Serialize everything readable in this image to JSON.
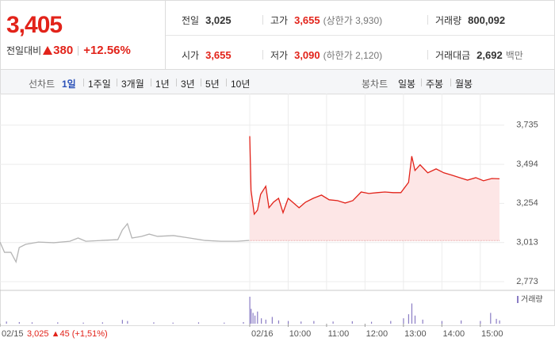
{
  "header": {
    "price": "3,405",
    "change_label": "전일대비",
    "change": "380",
    "change_pct": "+12.56%",
    "stats": [
      [
        {
          "label": "전일",
          "value": "3,025"
        },
        {
          "label": "고가",
          "value": "3,655",
          "note": "(상한가 3,930)"
        },
        {
          "label": "거래량",
          "value": "800,092"
        }
      ],
      [
        {
          "label": "시가",
          "value": "3,655"
        },
        {
          "label": "저가",
          "value": "3,090",
          "note": "(하한가 2,120)"
        },
        {
          "label": "거래대금",
          "value": "2,692",
          "note": "백만"
        }
      ]
    ]
  },
  "tabs": {
    "line_label": "선차트",
    "line_tabs": [
      "1일",
      "1주일",
      "3개월",
      "1년",
      "3년",
      "5년",
      "10년"
    ],
    "candle_label": "봉차트",
    "candle_tabs": [
      "일봉",
      "주봉",
      "월봉"
    ]
  },
  "chart_data": {
    "type": "line",
    "xlim": [
      -390,
      390
    ],
    "xticks": [
      {
        "value": -390,
        "label": "02/15"
      },
      {
        "value": 0,
        "label": "02/16"
      },
      {
        "value": 60,
        "label": "10:00"
      },
      {
        "value": 120,
        "label": "11:00"
      },
      {
        "value": 180,
        "label": "12:00"
      },
      {
        "value": 240,
        "label": "13:00"
      },
      {
        "value": 300,
        "label": "14:00"
      },
      {
        "value": 360,
        "label": "15:00"
      }
    ],
    "ylim": [
      2724,
      3880
    ],
    "yticks": [
      {
        "value": 3735,
        "label": "3,735"
      },
      {
        "value": 3494,
        "label": "3,494"
      },
      {
        "value": 3254,
        "label": "3,254"
      },
      {
        "value": 3013,
        "label": "3,013"
      },
      {
        "value": 2773,
        "label": "2,773"
      }
    ],
    "grid": true,
    "baseline": 3025,
    "prev_summary": "3,025 ▲45 (+1,51%)",
    "series": [
      {
        "color": "#b5b5b5",
        "x": [
          -390,
          -383,
          -373,
          -365,
          -360,
          -350,
          -330,
          -306,
          -281,
          -268,
          -256,
          -231,
          -206,
          -199,
          -191,
          -184,
          -169,
          -157,
          -144,
          -119,
          -94,
          -70,
          -45,
          -20,
          -1
        ],
        "values": [
          3016,
          2953,
          2953,
          2894,
          2982,
          3002,
          3016,
          3012,
          3021,
          3041,
          3021,
          3026,
          3031,
          3090,
          3129,
          3041,
          3051,
          3065,
          3051,
          3056,
          3041,
          3026,
          3021,
          3021,
          3026
        ]
      },
      {
        "color": "#e2231a",
        "fill": "#fde6e6",
        "x": [
          0,
          2,
          7,
          12,
          17,
          25,
          30,
          37,
          45,
          52,
          60,
          67,
          77,
          87,
          99,
          112,
          124,
          137,
          149,
          161,
          174,
          186,
          199,
          211,
          224,
          236,
          248,
          253,
          258,
          266,
          278,
          291,
          303,
          316,
          328,
          340,
          353,
          365,
          378,
          390
        ],
        "values": [
          3667,
          3334,
          3188,
          3212,
          3310,
          3359,
          3227,
          3261,
          3285,
          3197,
          3285,
          3261,
          3227,
          3261,
          3285,
          3305,
          3276,
          3271,
          3256,
          3271,
          3324,
          3315,
          3320,
          3324,
          3320,
          3320,
          3383,
          3544,
          3456,
          3491,
          3442,
          3466,
          3442,
          3427,
          3412,
          3397,
          3412,
          3393,
          3407,
          3405
        ]
      }
    ],
    "volume": {
      "name": "거래량",
      "color": "#8a7cc4",
      "vlim": [
        0,
        100
      ],
      "x": [
        -380,
        -360,
        -340,
        -300,
        -260,
        -230,
        -199,
        -191,
        -150,
        -120,
        -80,
        -40,
        -10,
        0,
        2,
        5,
        8,
        12,
        18,
        25,
        35,
        45,
        60,
        80,
        100,
        130,
        160,
        190,
        220,
        240,
        248,
        253,
        258,
        270,
        300,
        330,
        360,
        376,
        385,
        390
      ],
      "values": [
        8,
        6,
        5,
        5,
        4,
        5,
        14,
        10,
        5,
        4,
        5,
        4,
        6,
        100,
        55,
        40,
        30,
        45,
        20,
        15,
        25,
        12,
        10,
        8,
        10,
        8,
        9,
        7,
        10,
        20,
        35,
        75,
        30,
        15,
        10,
        12,
        10,
        40,
        18,
        12
      ]
    }
  }
}
